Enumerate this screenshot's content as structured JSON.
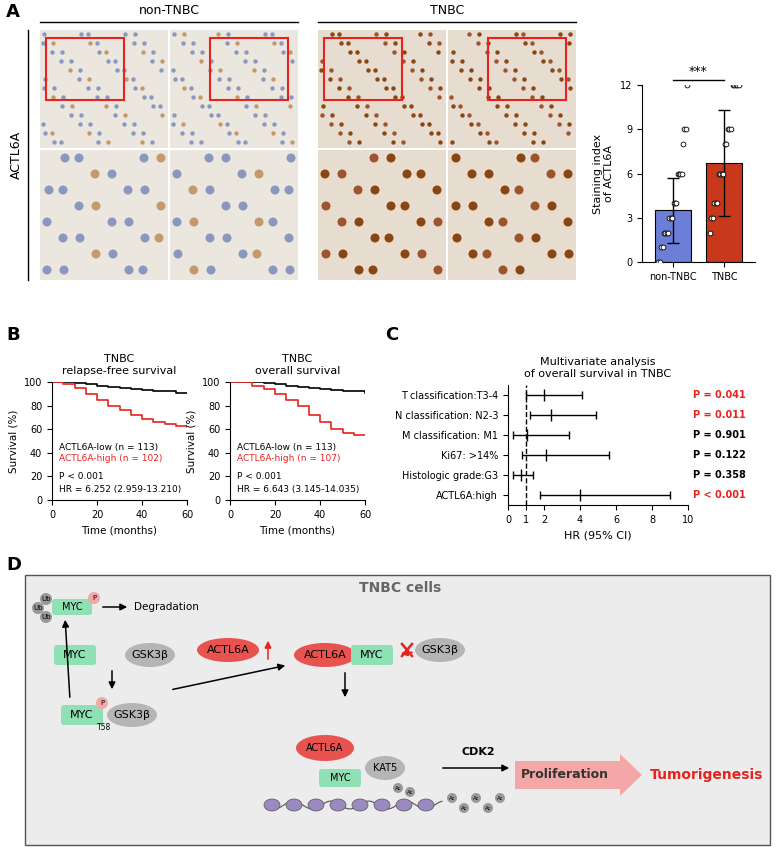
{
  "panel_labels": [
    "A",
    "B",
    "C",
    "D"
  ],
  "ihc": {
    "marker": "ACTL6A",
    "groups": [
      "non-TNBC",
      "TNBC"
    ]
  },
  "chart_data": [
    {
      "type": "bar",
      "categories": [
        "non-TNBC",
        "TNBC"
      ],
      "values": [
        3.5,
        6.7
      ],
      "errors": [
        2.2,
        3.6
      ],
      "colors": [
        "#6b7fd7",
        "#c8381a"
      ],
      "ylabel": "Staining index\nof ACTL6A",
      "ylim": [
        0,
        12
      ],
      "yticks": [
        0,
        3,
        6,
        9,
        12
      ],
      "annotation": "***",
      "points": [
        [
          0,
          0,
          1,
          1,
          2,
          2,
          2,
          2,
          3,
          3,
          3,
          4,
          4,
          4,
          6,
          6,
          6,
          6,
          8,
          9,
          9,
          12
        ],
        [
          2,
          3,
          3,
          4,
          4,
          4,
          6,
          6,
          6,
          6,
          8,
          8,
          9,
          9,
          9,
          12,
          12,
          12,
          12,
          12
        ]
      ]
    },
    {
      "type": "line",
      "title": "TNBC\nrelapse-free survival",
      "xlabel": "Time (months)",
      "ylabel": "Survival (%)",
      "xlim": [
        0,
        60
      ],
      "xticks": [
        0,
        20,
        40,
        60
      ],
      "ylim": [
        0,
        100
      ],
      "yticks": [
        0,
        20,
        40,
        60,
        80,
        100
      ],
      "line_style": "steps",
      "x": [
        0,
        5,
        10,
        15,
        20,
        25,
        30,
        35,
        40,
        45,
        50,
        55,
        60
      ],
      "series": [
        {
          "name": "ACTL6A-low (n = 113)",
          "color": "#000000",
          "values": [
            100,
            100,
            99,
            98,
            97,
            96,
            95,
            94,
            93,
            92,
            92,
            91,
            91
          ]
        },
        {
          "name": "ACTL6A-high (n = 102)",
          "color": "#e8231e",
          "values": [
            100,
            98,
            95,
            90,
            85,
            80,
            76,
            72,
            69,
            66,
            64,
            63,
            62
          ]
        }
      ],
      "annotations": [
        "P < 0.001",
        "HR = 6.252 (2.959-13.210)"
      ]
    },
    {
      "type": "line",
      "title": "TNBC\noverall survival",
      "xlabel": "Time (months)",
      "ylabel": "Survival (%)",
      "xlim": [
        0,
        60
      ],
      "xticks": [
        0,
        20,
        40,
        60
      ],
      "ylim": [
        0,
        100
      ],
      "yticks": [
        0,
        20,
        40,
        60,
        80,
        100
      ],
      "line_style": "steps",
      "x": [
        0,
        5,
        10,
        15,
        20,
        25,
        30,
        35,
        40,
        45,
        50,
        55,
        60
      ],
      "series": [
        {
          "name": "ACTL6A-low (n = 113)",
          "color": "#000000",
          "values": [
            100,
            100,
            100,
            99,
            98,
            97,
            96,
            95,
            94,
            93,
            92,
            92,
            91
          ]
        },
        {
          "name": "ACTL6A-high (n = 107)",
          "color": "#e8231e",
          "values": [
            100,
            100,
            97,
            94,
            90,
            85,
            80,
            72,
            66,
            60,
            57,
            55,
            55
          ]
        }
      ],
      "annotations": [
        "P < 0.001",
        "HR = 6.643 (3.145-14.035)"
      ]
    },
    {
      "type": "forest",
      "title": "Multivariate analysis\nof overall survival in TNBC",
      "xlabel": "HR (95% CI)",
      "categories": [
        "T classification:T3-4",
        "N classification: N2-3",
        "M classification: M1",
        "Ki67: >14%",
        "Histologic grade:G3",
        "ACTL6A:high"
      ],
      "values": [
        2.0,
        2.4,
        1.05,
        2.1,
        0.7,
        4.0
      ],
      "ci_low": [
        1.0,
        1.2,
        0.3,
        0.8,
        0.3,
        1.8
      ],
      "ci_high": [
        4.1,
        4.9,
        3.4,
        5.6,
        1.4,
        9.0
      ],
      "p_values": [
        "P = 0.041",
        "P = 0.011",
        "P = 0.901",
        "P = 0.122",
        "P = 0.358",
        "P < 0.001"
      ],
      "p_colors": [
        "#e8231e",
        "#e8231e",
        "#000000",
        "#000000",
        "#000000",
        "#e8231e"
      ],
      "reference": 1,
      "xlim": [
        0,
        10
      ],
      "xticks": [
        0,
        1,
        2,
        4,
        6,
        8,
        10
      ]
    }
  ],
  "diagram": {
    "title": "TNBC cells",
    "nodes": [
      "MYC",
      "GSK3β",
      "ACTL6A",
      "KAT5",
      "P",
      "Ub",
      "Ac",
      "T58",
      "Degradation",
      "CDK2",
      "Proliferation",
      "Tumorigenesis"
    ]
  }
}
